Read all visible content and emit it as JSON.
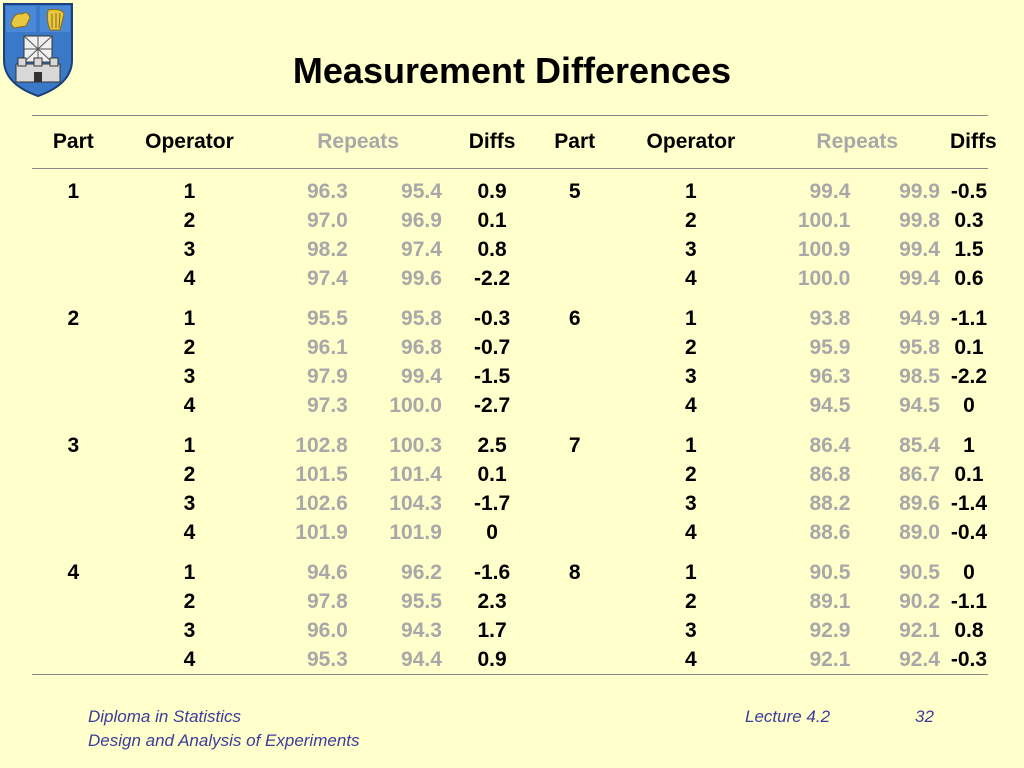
{
  "title": "Measurement Differences",
  "headers": [
    "Part",
    "Operator",
    "Repeats",
    "Diffs",
    "Part",
    "Operator",
    "Repeats",
    "Diffs"
  ],
  "groups": [
    {
      "left": {
        "part": "1",
        "rows": [
          {
            "op": "1",
            "r1": "96.3",
            "r2": "95.4",
            "diff": "0.9"
          },
          {
            "op": "2",
            "r1": "97.0",
            "r2": "96.9",
            "diff": "0.1"
          },
          {
            "op": "3",
            "r1": "98.2",
            "r2": "97.4",
            "diff": "0.8"
          },
          {
            "op": "4",
            "r1": "97.4",
            "r2": "99.6",
            "diff": "-2.2"
          }
        ]
      },
      "right": {
        "part": "5",
        "rows": [
          {
            "op": "1",
            "r1": "99.4",
            "r2": "99.9",
            "diff": "-0.5"
          },
          {
            "op": "2",
            "r1": "100.1",
            "r2": "99.8",
            "diff": "0.3"
          },
          {
            "op": "3",
            "r1": "100.9",
            "r2": "99.4",
            "diff": "1.5"
          },
          {
            "op": "4",
            "r1": "100.0",
            "r2": "99.4",
            "diff": "0.6"
          }
        ]
      }
    },
    {
      "left": {
        "part": "2",
        "rows": [
          {
            "op": "1",
            "r1": "95.5",
            "r2": "95.8",
            "diff": "-0.3"
          },
          {
            "op": "2",
            "r1": "96.1",
            "r2": "96.8",
            "diff": "-0.7"
          },
          {
            "op": "3",
            "r1": "97.9",
            "r2": "99.4",
            "diff": "-1.5"
          },
          {
            "op": "4",
            "r1": "97.3",
            "r2": "100.0",
            "diff": "-2.7"
          }
        ]
      },
      "right": {
        "part": "6",
        "rows": [
          {
            "op": "1",
            "r1": "93.8",
            "r2": "94.9",
            "diff": "-1.1"
          },
          {
            "op": "2",
            "r1": "95.9",
            "r2": "95.8",
            "diff": "0.1"
          },
          {
            "op": "3",
            "r1": "96.3",
            "r2": "98.5",
            "diff": "-2.2"
          },
          {
            "op": "4",
            "r1": "94.5",
            "r2": "94.5",
            "diff": "0"
          }
        ]
      }
    },
    {
      "left": {
        "part": "3",
        "rows": [
          {
            "op": "1",
            "r1": "102.8",
            "r2": "100.3",
            "diff": "2.5"
          },
          {
            "op": "2",
            "r1": "101.5",
            "r2": "101.4",
            "diff": "0.1"
          },
          {
            "op": "3",
            "r1": "102.6",
            "r2": "104.3",
            "diff": "-1.7"
          },
          {
            "op": "4",
            "r1": "101.9",
            "r2": "101.9",
            "diff": "0"
          }
        ]
      },
      "right": {
        "part": "7",
        "rows": [
          {
            "op": "1",
            "r1": "86.4",
            "r2": "85.4",
            "diff": "1"
          },
          {
            "op": "2",
            "r1": "86.8",
            "r2": "86.7",
            "diff": "0.1"
          },
          {
            "op": "3",
            "r1": "88.2",
            "r2": "89.6",
            "diff": "-1.4"
          },
          {
            "op": "4",
            "r1": "88.6",
            "r2": "89.0",
            "diff": "-0.4"
          }
        ]
      }
    },
    {
      "left": {
        "part": "4",
        "rows": [
          {
            "op": "1",
            "r1": "94.6",
            "r2": "96.2",
            "diff": "-1.6"
          },
          {
            "op": "2",
            "r1": "97.8",
            "r2": "95.5",
            "diff": "2.3"
          },
          {
            "op": "3",
            "r1": "96.0",
            "r2": "94.3",
            "diff": "1.7"
          },
          {
            "op": "4",
            "r1": "95.3",
            "r2": "94.4",
            "diff": "0.9"
          }
        ]
      },
      "right": {
        "part": "8",
        "rows": [
          {
            "op": "1",
            "r1": "90.5",
            "r2": "90.5",
            "diff": "0"
          },
          {
            "op": "2",
            "r1": "89.1",
            "r2": "90.2",
            "diff": "-1.1"
          },
          {
            "op": "3",
            "r1": "92.9",
            "r2": "92.1",
            "diff": "0.8"
          },
          {
            "op": "4",
            "r1": "92.1",
            "r2": "92.4",
            "diff": "-0.3"
          }
        ]
      }
    }
  ],
  "footer": {
    "course": "Diploma in Statistics",
    "subtitle": "Design and Analysis of Experiments",
    "lecture": "Lecture 4.2",
    "page": "32"
  },
  "colors": {
    "background": "#ffffcc",
    "repeats": "#a8a8a8",
    "footer": "#3c3c9c"
  }
}
